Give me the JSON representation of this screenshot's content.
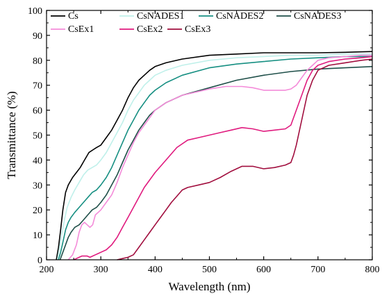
{
  "chart_data": {
    "type": "line",
    "title": "",
    "xlabel": "Wavelength (nm)",
    "ylabel": "Transmittance (%)",
    "xlim": [
      200,
      800
    ],
    "ylim": [
      0,
      100
    ],
    "xticks": [
      200,
      300,
      400,
      500,
      600,
      700,
      800
    ],
    "yticks": [
      0,
      10,
      20,
      30,
      40,
      50,
      60,
      70,
      80,
      90,
      100
    ],
    "grid": false,
    "legend_position": "top",
    "series": [
      {
        "name": "Cs",
        "color": "#000000",
        "x": [
          218,
          222,
          226,
          230,
          235,
          240,
          248,
          255,
          262,
          270,
          278,
          285,
          292,
          300,
          310,
          320,
          330,
          340,
          350,
          360,
          370,
          380,
          390,
          400,
          420,
          450,
          500,
          550,
          600,
          650,
          700,
          750,
          800
        ],
        "y": [
          0,
          5,
          12,
          20,
          27,
          30,
          33,
          35,
          37,
          40,
          43,
          44,
          45,
          46,
          49,
          52,
          56,
          60,
          65,
          69,
          72,
          74,
          76,
          77.5,
          79,
          80.5,
          82,
          82.5,
          83,
          83,
          83,
          83.2,
          83.5
        ]
      },
      {
        "name": "CsNADES1",
        "color": "#bff0ea",
        "x": [
          220,
          224,
          228,
          233,
          238,
          245,
          252,
          260,
          268,
          276,
          284,
          292,
          300,
          310,
          320,
          330,
          340,
          350,
          360,
          370,
          380,
          390,
          400,
          420,
          450,
          500,
          550,
          600,
          650,
          700,
          750,
          800
        ],
        "y": [
          0,
          5,
          10,
          16,
          21,
          25,
          28,
          31,
          34,
          36,
          37,
          38,
          40,
          43,
          47,
          51,
          55,
          60,
          64,
          67,
          70,
          72,
          74,
          76,
          78,
          80,
          81,
          81.5,
          82,
          82,
          82.5,
          82.5
        ]
      },
      {
        "name": "CsNADES2",
        "color": "#168f82",
        "x": [
          222,
          226,
          230,
          235,
          240,
          245,
          252,
          260,
          268,
          276,
          284,
          292,
          300,
          310,
          320,
          330,
          340,
          350,
          360,
          370,
          380,
          390,
          400,
          420,
          450,
          500,
          550,
          600,
          650,
          700,
          750,
          800
        ],
        "y": [
          0,
          3,
          7,
          12,
          15,
          17,
          19,
          21,
          23,
          25,
          27,
          28,
          30,
          33,
          37,
          42,
          47,
          52,
          56,
          60,
          63,
          66,
          68,
          71,
          74,
          77,
          78.5,
          79.5,
          80.5,
          81,
          81.5,
          81.5
        ]
      },
      {
        "name": "CsNADES3",
        "color": "#1f4f49",
        "x": [
          225,
          230,
          235,
          240,
          245,
          252,
          260,
          268,
          276,
          284,
          292,
          300,
          310,
          320,
          330,
          340,
          350,
          360,
          370,
          380,
          390,
          400,
          420,
          450,
          500,
          550,
          600,
          650,
          700,
          750,
          800
        ],
        "y": [
          0,
          3,
          6,
          9,
          11,
          13,
          14,
          16,
          18,
          20,
          21,
          23,
          26,
          30,
          34,
          39,
          44,
          48,
          52,
          55,
          58,
          60,
          63,
          66,
          69,
          72,
          74,
          75.5,
          76.5,
          77,
          77.5
        ]
      },
      {
        "name": "CsEx1",
        "color": "#f48bd9",
        "x": [
          240,
          248,
          255,
          260,
          265,
          270,
          275,
          280,
          285,
          290,
          295,
          300,
          310,
          320,
          330,
          340,
          350,
          360,
          370,
          380,
          390,
          400,
          420,
          450,
          480,
          500,
          530,
          560,
          580,
          600,
          620,
          640,
          650,
          660,
          670,
          680,
          690,
          700,
          720,
          750,
          780,
          800
        ],
        "y": [
          0,
          2,
          6,
          11,
          14,
          15,
          14,
          13,
          14,
          18,
          19,
          20,
          23,
          26,
          31,
          37,
          42,
          47,
          51,
          54,
          57,
          60,
          63,
          66,
          67.5,
          68.5,
          69.5,
          69.5,
          69,
          68,
          68,
          68,
          68.5,
          70,
          73,
          76,
          78,
          80,
          81,
          81.5,
          82,
          82
        ]
      },
      {
        "name": "CsEx2",
        "color": "#e01a7e",
        "x": [
          250,
          255,
          260,
          265,
          270,
          275,
          280,
          285,
          290,
          295,
          300,
          310,
          320,
          330,
          340,
          350,
          360,
          370,
          380,
          390,
          400,
          420,
          440,
          460,
          480,
          500,
          520,
          540,
          560,
          580,
          600,
          620,
          640,
          650,
          660,
          670,
          680,
          690,
          700,
          720,
          750,
          780,
          800
        ],
        "y": [
          0,
          0.5,
          1,
          1.5,
          1.5,
          1.5,
          1,
          1.5,
          2,
          2.5,
          3,
          4,
          6,
          9,
          13,
          17,
          21,
          25,
          29,
          32,
          35,
          40,
          45,
          48,
          49,
          50,
          51,
          52,
          53,
          52.5,
          51.5,
          52,
          52.5,
          54,
          60,
          66,
          72,
          76,
          78,
          79.5,
          80.5,
          81,
          81.5
        ]
      },
      {
        "name": "CsEx3",
        "color": "#a10e3e",
        "x": [
          330,
          340,
          350,
          360,
          370,
          380,
          390,
          400,
          410,
          420,
          430,
          440,
          450,
          460,
          480,
          500,
          520,
          540,
          560,
          580,
          600,
          620,
          640,
          650,
          655,
          660,
          665,
          670,
          675,
          680,
          690,
          700,
          720,
          750,
          780,
          800
        ],
        "y": [
          0,
          0.5,
          1,
          2,
          5,
          8,
          11,
          14,
          17,
          20,
          23,
          25.5,
          28,
          29,
          30,
          31,
          33,
          35.5,
          37.5,
          37.5,
          36.5,
          37,
          38,
          39,
          42,
          46,
          51,
          56,
          61,
          66,
          72,
          76,
          78,
          79,
          80,
          80.5
        ]
      }
    ]
  }
}
